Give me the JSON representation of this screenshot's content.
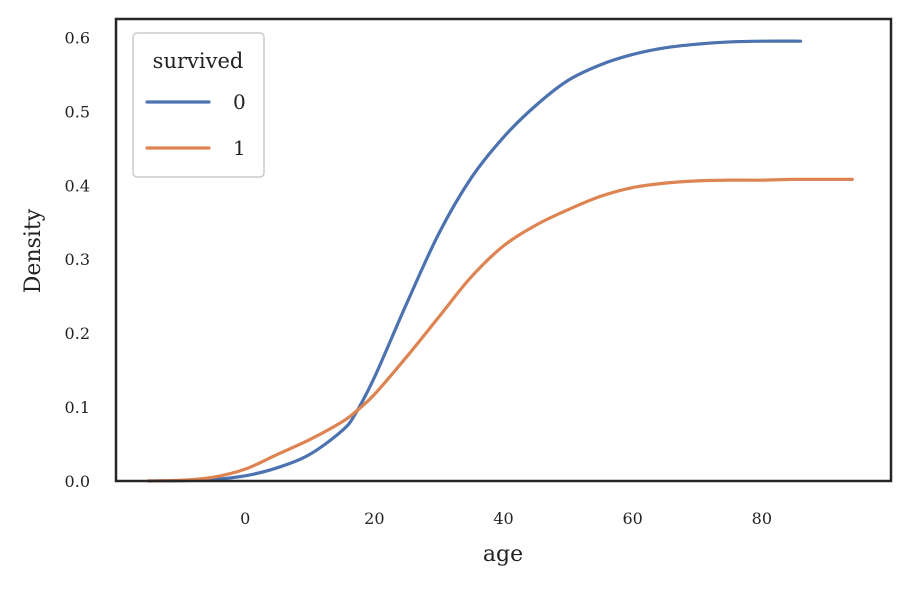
{
  "chart_data": {
    "type": "line",
    "xlabel": "age",
    "ylabel": "Density",
    "xlim": [
      -20,
      100
    ],
    "ylim": [
      0,
      0.625
    ],
    "xticks": [
      0,
      20,
      40,
      60,
      80
    ],
    "yticks": [
      0.0,
      0.1,
      0.2,
      0.3,
      0.4,
      0.5,
      0.6
    ],
    "ytick_labels": [
      "0.0",
      "0.1",
      "0.2",
      "0.3",
      "0.4",
      "0.5",
      "0.6"
    ],
    "grid": false,
    "legend": {
      "title": "survived",
      "placement": "top-left"
    },
    "series": [
      {
        "name": "0",
        "color": "#4c72b0",
        "x": [
          -15,
          -10,
          -5,
          0,
          5,
          10,
          15,
          17,
          20,
          25,
          30,
          35,
          40,
          45,
          50,
          55,
          60,
          65,
          70,
          75,
          80,
          86
        ],
        "y": [
          0.0,
          0.0005,
          0.002,
          0.007,
          0.018,
          0.036,
          0.068,
          0.09,
          0.14,
          0.24,
          0.335,
          0.41,
          0.465,
          0.508,
          0.542,
          0.563,
          0.577,
          0.586,
          0.591,
          0.594,
          0.595,
          0.595
        ]
      },
      {
        "name": "1",
        "color": "#dd8452",
        "x": [
          -15,
          -10,
          -5,
          0,
          5,
          10,
          15,
          17,
          20,
          25,
          30,
          35,
          40,
          45,
          50,
          55,
          60,
          65,
          70,
          75,
          80,
          85,
          90,
          94
        ],
        "y": [
          0.0,
          0.001,
          0.005,
          0.016,
          0.036,
          0.056,
          0.08,
          0.093,
          0.117,
          0.168,
          0.222,
          0.276,
          0.318,
          0.346,
          0.367,
          0.385,
          0.397,
          0.403,
          0.406,
          0.407,
          0.407,
          0.408,
          0.408,
          0.408
        ]
      }
    ]
  }
}
